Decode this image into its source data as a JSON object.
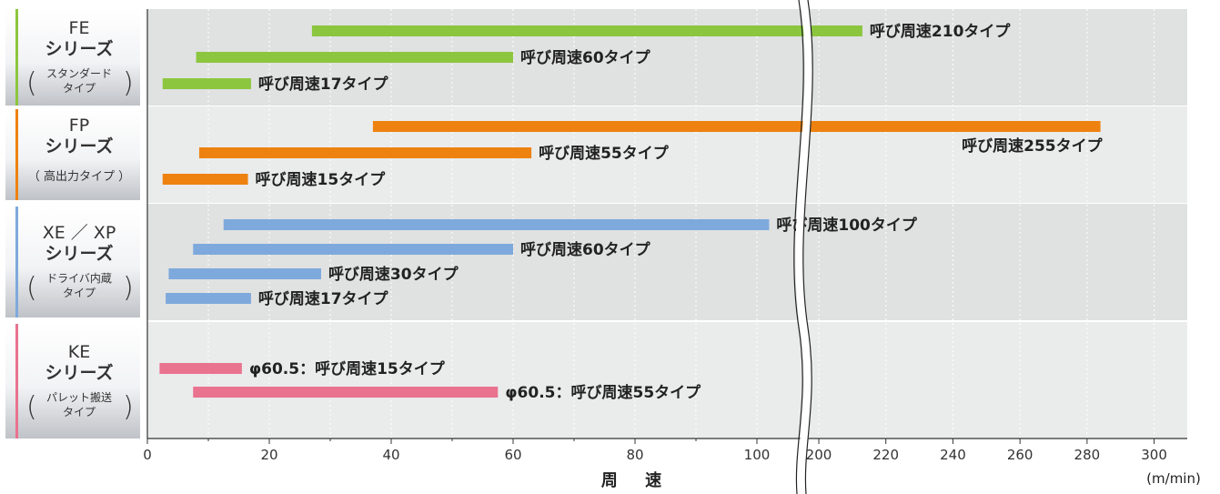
{
  "chart_data": {
    "type": "bar",
    "orientation": "horizontal-range",
    "xlabel": "周 速",
    "unit": "(m/min)",
    "x_ticks_left": [
      "0",
      "20",
      "40",
      "60",
      "80",
      "100"
    ],
    "x_ticks_right": [
      "200",
      "220",
      "240",
      "260",
      "280",
      "300"
    ],
    "x_break": [
      110,
      190
    ],
    "groups": [
      {
        "name": "FE\nシリーズ",
        "sub": [
          "スタンダード",
          "タイプ"
        ],
        "color": "#8cc63f",
        "bars": [
          {
            "label": "呼び周速210タイプ",
            "min": 27,
            "max": 213
          },
          {
            "label": "呼び周速60タイプ",
            "min": 8,
            "max": 60
          },
          {
            "label": "呼び周速17タイプ",
            "min": 2.5,
            "max": 17
          }
        ]
      },
      {
        "name": "FP\nシリーズ",
        "sub": [
          "高出力タイプ"
        ],
        "color": "#ee8210",
        "bars": [
          {
            "label": "呼び周速255タイプ",
            "min": 37,
            "max": 284
          },
          {
            "label": "呼び周速55タイプ",
            "min": 8.5,
            "max": 63
          },
          {
            "label": "呼び周速15タイプ",
            "min": 2.5,
            "max": 16.5
          }
        ]
      },
      {
        "name": "XE ／ XP\nシリーズ",
        "sub": [
          "ドライバ内蔵",
          "タイプ"
        ],
        "color": "#7ea9dc",
        "bars": [
          {
            "label": "呼び周速100タイプ",
            "min": 12.5,
            "max": 102
          },
          {
            "label": "呼び周速60タイプ",
            "min": 7.5,
            "max": 60
          },
          {
            "label": "呼び周速30タイプ",
            "min": 3.5,
            "max": 28.5
          },
          {
            "label": "呼び周速17タイプ",
            "min": 3,
            "max": 17
          }
        ]
      },
      {
        "name": "KE\nシリーズ",
        "sub": [
          "パレット搬送",
          "タイプ"
        ],
        "color": "#e9728f",
        "bars": [
          {
            "label": "φ60.5：呼び周速15タイプ",
            "min": 2,
            "max": 15.5
          },
          {
            "label": "φ60.5：呼び周速55タイプ",
            "min": 7.5,
            "max": 57.5
          }
        ]
      }
    ]
  }
}
